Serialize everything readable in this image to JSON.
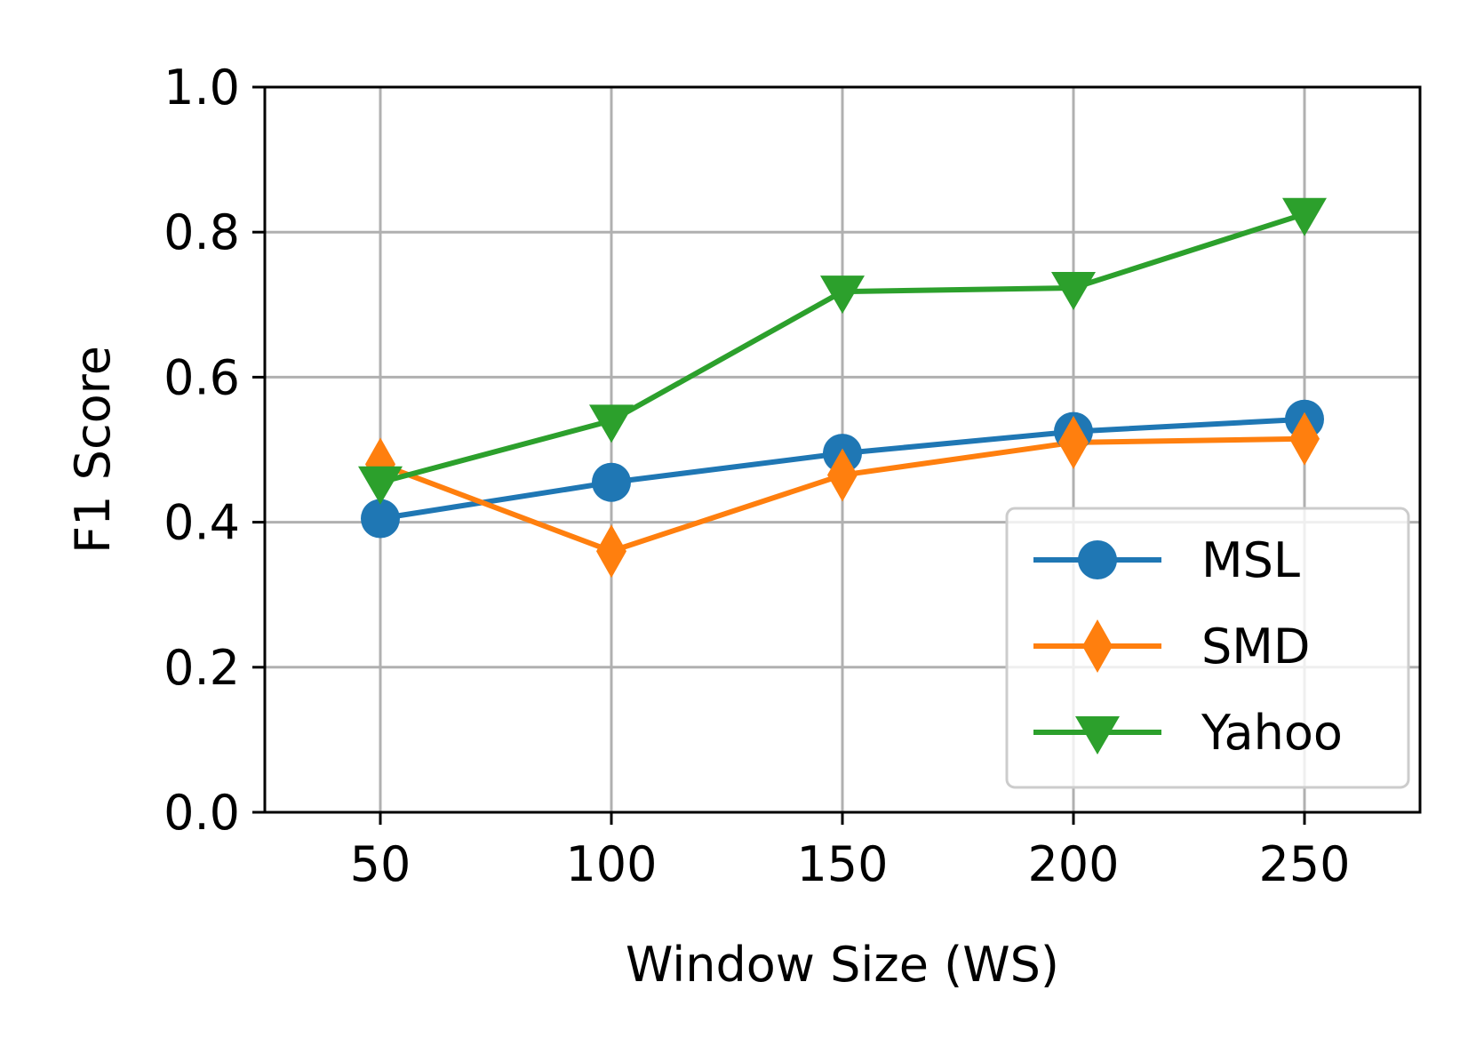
{
  "chart_data": {
    "type": "line",
    "title": "",
    "xlabel": "Window Size (WS)",
    "ylabel": "F1 Score",
    "x": [
      50,
      100,
      150,
      200,
      250
    ],
    "xticks": [
      "50",
      "100",
      "150",
      "200",
      "250"
    ],
    "yticks": [
      "0.0",
      "0.2",
      "0.4",
      "0.6",
      "0.8",
      "1.0"
    ],
    "xlim": [
      25,
      275
    ],
    "ylim": [
      0.0,
      1.0
    ],
    "grid": true,
    "legend_position": "lower-right",
    "series": [
      {
        "name": "MSL",
        "color": "#1f77b4",
        "marker": "circle",
        "values": [
          0.405,
          0.455,
          0.495,
          0.525,
          0.542
        ]
      },
      {
        "name": "SMD",
        "color": "#ff7f0e",
        "marker": "thin-diamond",
        "values": [
          0.48,
          0.36,
          0.465,
          0.51,
          0.515
        ]
      },
      {
        "name": "Yahoo",
        "color": "#2ca02c",
        "marker": "triangle-down",
        "values": [
          0.455,
          0.54,
          0.718,
          0.723,
          0.825
        ]
      }
    ]
  }
}
